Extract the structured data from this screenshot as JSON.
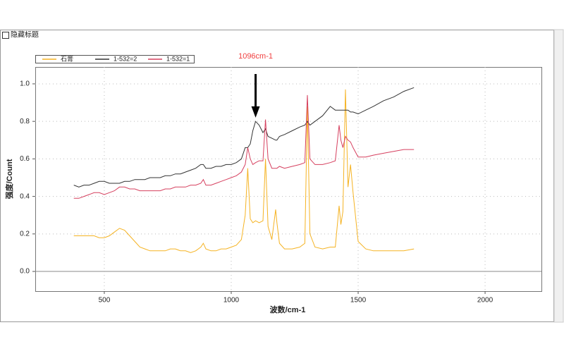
{
  "ui": {
    "checkbox": "隐藏标题"
  },
  "chart_data": {
    "type": "line",
    "x_label": "波数/cm-1",
    "y_label": "强度/Count",
    "annotation": {
      "text": "1096cm-1",
      "x": 1096,
      "y": 0.82,
      "color": "#f04040"
    },
    "legend": "top-left",
    "grid": true,
    "xlim": [
      228,
      2222
    ],
    "xticks": [
      500,
      1000,
      1500,
      2000
    ],
    "ylim": [
      -0.105,
      1.09
    ],
    "yticks": [
      {
        "value": 0,
        "label": "0.0"
      },
      0.2,
      0.4,
      0.6,
      0.8,
      {
        "value": 1,
        "label": "1.0"
      }
    ],
    "x": [
      380,
      400,
      420,
      440,
      460,
      480,
      500,
      520,
      540,
      560,
      580,
      600,
      620,
      640,
      660,
      680,
      700,
      720,
      740,
      760,
      780,
      800,
      820,
      840,
      860,
      880,
      890,
      900,
      920,
      940,
      960,
      980,
      1000,
      1020,
      1040,
      1055,
      1065,
      1075,
      1085,
      1096,
      1110,
      1125,
      1135,
      1145,
      1160,
      1175,
      1180,
      1190,
      1210,
      1240,
      1270,
      1290,
      1300,
      1310,
      1330,
      1360,
      1390,
      1410,
      1425,
      1432,
      1440,
      1450,
      1460,
      1470,
      1480,
      1500,
      1530,
      1560,
      1600,
      1640,
      1680,
      1720
    ],
    "series": [
      {
        "name": "石膏",
        "color": "#f5b323",
        "values": [
          0.19,
          0.19,
          0.19,
          0.19,
          0.19,
          0.18,
          0.18,
          0.19,
          0.21,
          0.23,
          0.22,
          0.19,
          0.16,
          0.13,
          0.12,
          0.11,
          0.11,
          0.11,
          0.11,
          0.12,
          0.12,
          0.11,
          0.11,
          0.1,
          0.11,
          0.13,
          0.15,
          0.12,
          0.11,
          0.11,
          0.12,
          0.12,
          0.13,
          0.14,
          0.17,
          0.3,
          0.55,
          0.28,
          0.26,
          0.27,
          0.26,
          0.27,
          0.6,
          0.24,
          0.17,
          0.33,
          0.26,
          0.15,
          0.12,
          0.12,
          0.13,
          0.15,
          0.88,
          0.2,
          0.13,
          0.12,
          0.13,
          0.13,
          0.35,
          0.25,
          0.32,
          0.97,
          0.45,
          0.57,
          0.42,
          0.16,
          0.12,
          0.11,
          0.11,
          0.11,
          0.11,
          0.12
        ]
      },
      {
        "name": "1-532=2",
        "color": "#333333",
        "values": [
          0.46,
          0.45,
          0.46,
          0.46,
          0.47,
          0.48,
          0.48,
          0.47,
          0.47,
          0.47,
          0.48,
          0.48,
          0.49,
          0.49,
          0.49,
          0.5,
          0.5,
          0.5,
          0.51,
          0.51,
          0.52,
          0.52,
          0.53,
          0.54,
          0.55,
          0.57,
          0.57,
          0.55,
          0.55,
          0.56,
          0.56,
          0.57,
          0.57,
          0.58,
          0.6,
          0.66,
          0.66,
          0.68,
          0.75,
          0.8,
          0.78,
          0.74,
          0.76,
          0.72,
          0.71,
          0.7,
          0.7,
          0.72,
          0.73,
          0.75,
          0.77,
          0.78,
          0.8,
          0.78,
          0.8,
          0.83,
          0.88,
          0.86,
          0.86,
          0.86,
          0.86,
          0.86,
          0.86,
          0.85,
          0.85,
          0.84,
          0.86,
          0.88,
          0.91,
          0.93,
          0.96,
          0.98
        ]
      },
      {
        "name": "1-532=1",
        "color": "#d6405f",
        "values": [
          0.39,
          0.39,
          0.4,
          0.41,
          0.42,
          0.42,
          0.41,
          0.42,
          0.43,
          0.45,
          0.45,
          0.44,
          0.44,
          0.43,
          0.43,
          0.43,
          0.43,
          0.43,
          0.44,
          0.44,
          0.45,
          0.45,
          0.45,
          0.46,
          0.46,
          0.47,
          0.49,
          0.46,
          0.46,
          0.47,
          0.48,
          0.49,
          0.5,
          0.51,
          0.53,
          0.57,
          0.66,
          0.6,
          0.57,
          0.58,
          0.59,
          0.59,
          0.81,
          0.6,
          0.55,
          0.55,
          0.55,
          0.56,
          0.55,
          0.56,
          0.57,
          0.58,
          0.94,
          0.6,
          0.57,
          0.57,
          0.58,
          0.59,
          0.78,
          0.7,
          0.66,
          0.72,
          0.7,
          0.69,
          0.66,
          0.61,
          0.61,
          0.62,
          0.63,
          0.64,
          0.65,
          0.65
        ]
      }
    ]
  }
}
